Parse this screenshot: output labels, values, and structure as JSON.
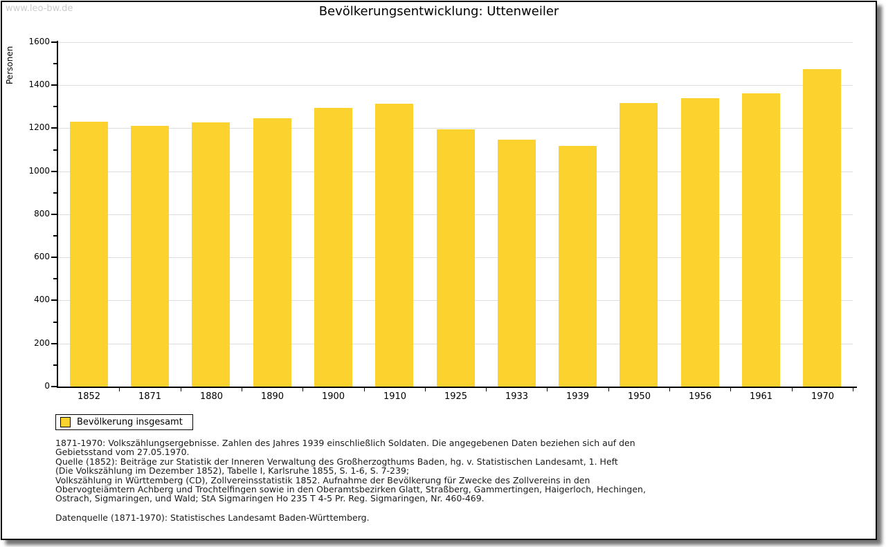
{
  "watermark": "www.leo-bw.de",
  "title": "Bevölkerungsentwicklung: Uttenweiler",
  "chart_data": {
    "type": "bar",
    "title": "Bevölkerungsentwicklung: Uttenweiler",
    "ylabel": "Personen",
    "xlabel": "",
    "categories": [
      "1852",
      "1871",
      "1880",
      "1890",
      "1900",
      "1910",
      "1925",
      "1933",
      "1939",
      "1950",
      "1956",
      "1961",
      "1970"
    ],
    "values": [
      1230,
      1210,
      1226,
      1246,
      1295,
      1314,
      1194,
      1146,
      1118,
      1317,
      1341,
      1362,
      1476
    ],
    "series_name": "Bevölkerung insgesamt",
    "ylim": [
      0,
      1600
    ],
    "ytick_step": 200,
    "ytick_minor_step": 100,
    "grid": true,
    "legend_position": "bottom-left",
    "bar_color": "#FCD32E",
    "grid_color": "#DDDDDD",
    "axis_color": "#000000"
  },
  "legend": {
    "items": [
      {
        "label": "Bevölkerung insgesamt",
        "color": "#FCD32E"
      }
    ]
  },
  "footnotes": {
    "lines": [
      "1871-1970: Volkszählungsergebnisse. Zahlen des Jahres 1939 einschließlich Soldaten. Die angegebenen Daten beziehen sich auf den",
      "Gebietsstand vom 27.05.1970.",
      "Quelle (1852): Beiträge zur Statistik der Inneren Verwaltung des Großherzogthums Baden, hg. v. Statistischen Landesamt, 1. Heft",
      "(Die Volkszählung im Dezember 1852), Tabelle I, Karlsruhe 1855, S. 1-6, S. 7-239;",
      "Volkszählung in Württemberg (CD), Zollvereinsstatistik 1852. Aufnahme der Bevölkerung für Zwecke des Zollvereins in den",
      "Obervogteiämtern Achberg und Trochtelfingen sowie in den Oberamtsbezirken Glatt, Straßberg, Gammertingen, Haigerloch, Hechingen,",
      "Ostrach, Sigmaringen, und Wald; StA Sigmaringen Ho 235 T 4-5 Pr. Reg. Sigmaringen, Nr. 460-469."
    ],
    "datasource": "Datenquelle (1871-1970): Statistisches Landesamt Baden-Württemberg."
  }
}
